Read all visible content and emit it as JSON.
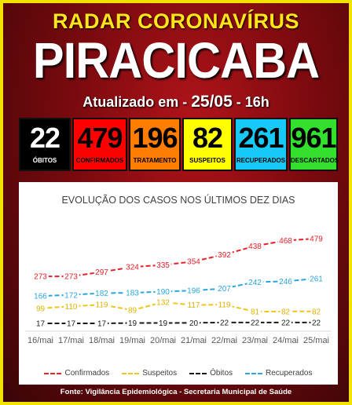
{
  "header": {
    "top_title": "RADAR CORONAVÍRUS",
    "city": "PIRACICABA",
    "updated_prefix": "Atualizado em - ",
    "updated_date": "25/05",
    "updated_suffix": " - 16h"
  },
  "stats": [
    {
      "value": "22",
      "label": "ÓBITOS",
      "bg": "#000000",
      "color": "#ffffff"
    },
    {
      "value": "479",
      "label": "CONFIRMADOS",
      "bg": "#ff0000",
      "color": "#000000"
    },
    {
      "value": "196",
      "label": "TRATAMENTO",
      "bg": "#ff7d00",
      "color": "#000000"
    },
    {
      "value": "82",
      "label": "SUSPEITOS",
      "bg": "#ffff00",
      "color": "#000000"
    },
    {
      "value": "261",
      "label": "RECUPERADOS",
      "bg": "#16c9f6",
      "color": "#000000"
    },
    {
      "value": "961",
      "label": "DESCARTADOS",
      "bg": "#33e02e",
      "color": "#000000"
    }
  ],
  "chart_data": {
    "type": "line",
    "title": "EVOLUÇÃO DOS CASOS NOS ÚLTIMOS DEZ DIAS",
    "categories": [
      "16/mai",
      "17/mai",
      "18/mai",
      "19/mai",
      "20/mai",
      "21/mai",
      "22/mai",
      "23/mai",
      "24/mai",
      "25/mai"
    ],
    "series": [
      {
        "name": "Confirmados",
        "color": "#e8202a",
        "values": [
          273,
          273,
          297,
          324,
          335,
          354,
          392,
          438,
          468,
          479
        ]
      },
      {
        "name": "Suspeitos",
        "color": "#f0c419",
        "values": [
          99,
          110,
          119,
          89,
          132,
          117,
          119,
          81,
          82,
          82
        ]
      },
      {
        "name": "Óbitos",
        "color": "#1a1a1a",
        "values": [
          17,
          17,
          17,
          19,
          19,
          20,
          22,
          22,
          22,
          22
        ]
      },
      {
        "name": "Recuperados",
        "color": "#2aa5df",
        "values": [
          166,
          172,
          182,
          183,
          190,
          196,
          207,
          242,
          246,
          261
        ]
      }
    ],
    "ylim": [
      0,
      500
    ],
    "grid": false,
    "line_style": "dashed",
    "legend_position": "bottom"
  },
  "footer": "Fonte: Vigilância Epidemiológica - Secretaria Municipal de Saúde"
}
